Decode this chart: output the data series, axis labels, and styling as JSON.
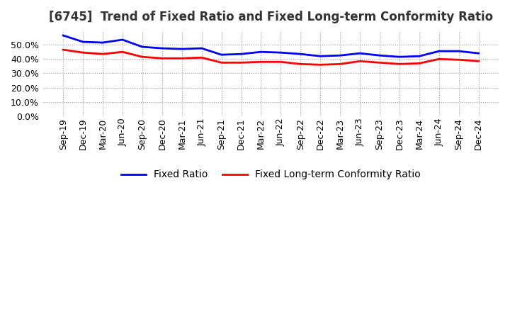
{
  "title": "[6745]  Trend of Fixed Ratio and Fixed Long-term Conformity Ratio",
  "x_labels": [
    "Sep-19",
    "Dec-19",
    "Mar-20",
    "Jun-20",
    "Sep-20",
    "Dec-20",
    "Mar-21",
    "Jun-21",
    "Sep-21",
    "Dec-21",
    "Mar-22",
    "Jun-22",
    "Sep-22",
    "Dec-22",
    "Mar-23",
    "Jun-23",
    "Sep-23",
    "Dec-23",
    "Mar-24",
    "Jun-24",
    "Sep-24",
    "Dec-24"
  ],
  "fixed_ratio": [
    56.5,
    52.0,
    51.5,
    53.5,
    48.5,
    47.5,
    47.0,
    47.5,
    43.0,
    43.5,
    45.0,
    44.5,
    43.5,
    42.0,
    42.5,
    44.0,
    42.5,
    41.5,
    42.0,
    45.5,
    45.5,
    44.0
  ],
  "fixed_lt_ratio": [
    46.5,
    44.5,
    43.5,
    45.0,
    41.5,
    40.5,
    40.5,
    41.0,
    37.5,
    37.5,
    38.0,
    38.0,
    36.5,
    36.0,
    36.5,
    38.5,
    37.5,
    36.5,
    37.0,
    40.0,
    39.5,
    38.5
  ],
  "fixed_ratio_color": "#0000FF",
  "fixed_lt_ratio_color": "#FF0000",
  "ylim": [
    0,
    60
  ],
  "yticks": [
    0,
    10,
    20,
    30,
    40,
    50
  ],
  "background_color": "#FFFFFF",
  "grid_color": "#999999",
  "legend_fixed": "Fixed Ratio",
  "legend_fixed_lt": "Fixed Long-term Conformity Ratio",
  "title_fontsize": 12,
  "tick_fontsize": 9,
  "legend_fontsize": 10
}
